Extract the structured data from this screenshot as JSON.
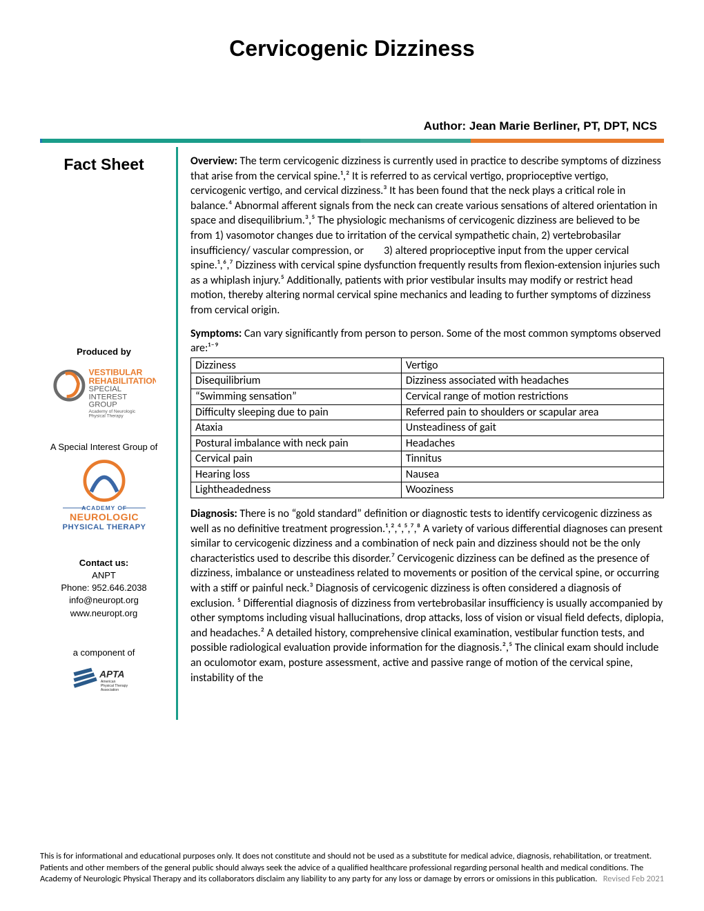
{
  "title": "Cervicogenic Dizziness",
  "author_line": "Author: Jean Marie Berliner, PT, DPT, NCS",
  "sidebar": {
    "fact_sheet": "Fact Sheet",
    "produced_by": "Produced by",
    "sig_of": "A Special Interest Group of",
    "contact_heading": "Contact us:",
    "contact_org": "ANPT",
    "contact_phone": "Phone: 952.646.2038",
    "contact_email": "info@neuropt.org",
    "contact_web": "www.neuropt.org",
    "component_of": "a component of"
  },
  "logos": {
    "vest": {
      "line1": "VESTIBULAR",
      "line2": "REHABILITATION",
      "line3a": "SPECIAL",
      "line3b": "INTEREST",
      "line3c": "GROUP",
      "line4a": "Academy of Neurologic",
      "line4b": "Physical Therapy"
    },
    "anpt": {
      "line1": "ACADEMY OF",
      "line2": "NEUROLOGIC",
      "line3": "PHYSICAL THERAPY"
    },
    "apta": {
      "line1": "APTA",
      "line2a": "American",
      "line2b": "Physical Therapy",
      "line2c": "Association"
    }
  },
  "colors": {
    "teal": "#1a9d8a",
    "orange": "#e87b2d",
    "blue": "#3a67a6",
    "grey": "#888888"
  },
  "overview": {
    "label": "Overview:",
    "text": " The term cervicogenic dizziness is currently used in practice to describe symptoms of dizziness that arise from the cervical spine.¹,² It is referred to as cervical vertigo, proprioceptive vertigo, cervicogenic vertigo, and cervical dizziness.³ It has been found that the neck plays a critical role in balance.⁴ Abnormal afferent signals from the neck can create various sensations of altered orientation in space and disequilibrium.³,⁵ The physiologic mechanisms of cervicogenic dizziness are believed to be from 1) vasomotor changes due to irritation of the cervical sympathetic chain, 2) vertebrobasilar insufficiency/ vascular compression, or        3) altered proprioceptive input from the upper cervical spine.¹,⁶,⁷ Dizziness with cervical spine dysfunction frequently results from flexion-extension injuries such as a whiplash injury.⁵ Additionally, patients with prior vestibular insults may modify or restrict head motion, thereby altering normal cervical spine mechanics and leading to further symptoms of dizziness from cervical origin."
  },
  "symptoms": {
    "label": "Symptoms:",
    "intro": " Can vary significantly from person to person. Some of the most common symptoms observed are:¹⁻⁹",
    "rows": [
      [
        "Dizziness",
        "Vertigo"
      ],
      [
        "Disequilibrium",
        "Dizziness associated with headaches"
      ],
      [
        "“Swimming sensation”",
        "Cervical range of motion restrictions"
      ],
      [
        "Difficulty sleeping due to pain",
        "Referred pain to shoulders or scapular area"
      ],
      [
        "Ataxia",
        "Unsteadiness of gait"
      ],
      [
        "Postural imbalance with neck pain",
        "Headaches"
      ],
      [
        "Cervical pain",
        "Tinnitus"
      ],
      [
        "Hearing loss",
        "Nausea"
      ],
      [
        "Lightheadedness",
        "Wooziness"
      ]
    ]
  },
  "diagnosis": {
    "label": "Diagnosis:",
    "text": " There is no “gold standard” definition or diagnostic tests to identify cervicogenic dizziness as well as no definitive treatment progression.¹,²,⁴,⁵,⁷,⁸ A variety of various differential diagnoses can present similar to cervicogenic dizziness and a combination of neck pain and dizziness should not be the only characteristics used to describe this disorder.⁷ Cervicogenic dizziness can be defined as the presence of dizziness, imbalance or unsteadiness related to movements or position of the cervical spine, or occurring with a stiff or painful neck.³ Diagnosis of cervicogenic dizziness is often considered a diagnosis of exclusion. ⁵ Differential diagnosis of dizziness from vertebrobasilar insufficiency is usually accompanied by other symptoms including visual hallucinations, drop attacks, loss of vision or visual field defects, diplopia, and headaches.² A detailed history, comprehensive clinical examination, vestibular function tests, and possible radiological evaluation provide information for the diagnosis.²,⁵ The clinical exam should include an oculomotor exam, posture assessment, active and passive range of motion of the cervical spine, instability of the"
  },
  "disclaimer": "This is for informational and educational purposes only. It does not constitute and should not be used as a substitute for medical advice, diagnosis, rehabilitation, or treatment. Patients and other members of the general public should always seek the advice of a qualified healthcare professional regarding personal health and medical conditions. The Academy of Neurologic Physical Therapy and its collaborators disclaim any liability to any party for any loss or damage by errors or omissions in this publication.",
  "revised": "Revised Feb 2021"
}
